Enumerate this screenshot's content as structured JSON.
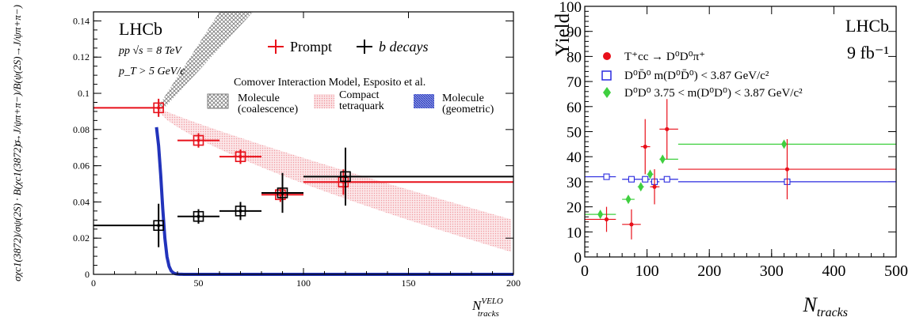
{
  "chart_data": [
    {
      "type": "scatter",
      "experiment": "LHCb",
      "conditions": [
        "pp  √s = 8 TeV",
        "p_T > 5 GeV/c"
      ],
      "xlabel": "N_tracks^VELO",
      "ylabel": "σχc1(3872)/σψ(2S) · B(χc1(3872)→J/ψπ+π−)/B(ψ(2S)→J/ψπ+π−)",
      "xlim": [
        0,
        200
      ],
      "ylim": [
        0,
        0.145
      ],
      "xticks": [
        0,
        50,
        100,
        150,
        200
      ],
      "yticks": [
        0,
        0.02,
        0.04,
        0.06,
        0.08,
        0.1,
        0.12,
        0.14
      ],
      "model_title": "Comover Interaction Model, Esposito et al.",
      "series": [
        {
          "name": "Prompt",
          "color": "#e8101a",
          "x": [
            31,
            50,
            70,
            89,
            119,
            170
          ],
          "xerr_low": [
            31,
            0,
            0,
            0,
            0,
            0
          ],
          "x_low": [
            0,
            40,
            60,
            80,
            100,
            100
          ],
          "x_high": [
            33,
            60,
            80,
            100,
            200,
            200
          ],
          "y": [
            0.092,
            0.074,
            0.065,
            0.044,
            0.051,
            0.051
          ],
          "yerr": [
            0.005,
            0.004,
            0.004,
            0.004,
            0.007,
            0.0
          ]
        },
        {
          "name": "b decays",
          "color": "#000000",
          "x": [
            31,
            50,
            70,
            90,
            120
          ],
          "x_low": [
            0,
            40,
            60,
            80,
            100
          ],
          "x_high": [
            33,
            60,
            80,
            100,
            200
          ],
          "y": [
            0.027,
            0.032,
            0.035,
            0.045,
            0.054
          ],
          "yerr": [
            0.012,
            0.004,
            0.005,
            0.011,
            0.016
          ]
        }
      ],
      "model_bands": [
        {
          "name": "Molecule (coalescence)",
          "color": "#777777",
          "pattern": "crosshatch"
        },
        {
          "name": "Compact tetraquark",
          "color": "#f4b4b8",
          "pattern": "dots"
        },
        {
          "name": "Molecule (geometric)",
          "color": "#2233bb",
          "pattern": "lines"
        }
      ]
    },
    {
      "type": "scatter",
      "experiment": "LHCb",
      "lumi": "9 fb⁻¹",
      "xlabel": "N_tracks",
      "ylabel": "Yield",
      "xlim": [
        0,
        500
      ],
      "ylim": [
        0,
        100
      ],
      "xticks": [
        0,
        100,
        200,
        300,
        400,
        500
      ],
      "yticks": [
        0,
        10,
        20,
        30,
        40,
        50,
        60,
        70,
        80,
        90,
        100
      ],
      "series": [
        {
          "name": "T⁺cc → D⁰D⁰π⁺",
          "color": "#e8101a",
          "marker": "circle",
          "x": [
            35,
            75,
            97,
            112,
            132,
            325
          ],
          "x_low": [
            0,
            60,
            90,
            105,
            120,
            150
          ],
          "x_high": [
            50,
            90,
            105,
            120,
            150,
            500
          ],
          "y": [
            15,
            13,
            44,
            28,
            51,
            35
          ],
          "yerr": [
            5,
            6,
            11,
            7,
            12,
            12
          ]
        },
        {
          "name": "D⁰D̄⁰  m(D⁰D̄⁰) < 3.87 GeV/c²",
          "color": "#2a2adf",
          "marker": "square",
          "x": [
            35,
            75,
            97,
            112,
            132,
            325
          ],
          "x_low": [
            0,
            60,
            90,
            105,
            120,
            150
          ],
          "x_high": [
            50,
            90,
            105,
            120,
            150,
            500
          ],
          "y": [
            32,
            31,
            31,
            30,
            31,
            30
          ],
          "yerr": [
            0,
            0,
            0,
            0,
            0,
            0
          ]
        },
        {
          "name": "D⁰D⁰  3.75 < m(D⁰D⁰) < 3.87 GeV/c²",
          "color": "#3fcf3f",
          "marker": "diamond",
          "x": [
            25,
            70,
            90,
            105,
            125,
            320
          ],
          "x_low": [
            0,
            60,
            85,
            100,
            120,
            150
          ],
          "x_high": [
            50,
            80,
            95,
            110,
            150,
            500
          ],
          "y": [
            17,
            23,
            28,
            33,
            39,
            45
          ],
          "yerr": [
            0,
            0,
            0,
            0,
            0,
            0
          ]
        }
      ]
    }
  ]
}
